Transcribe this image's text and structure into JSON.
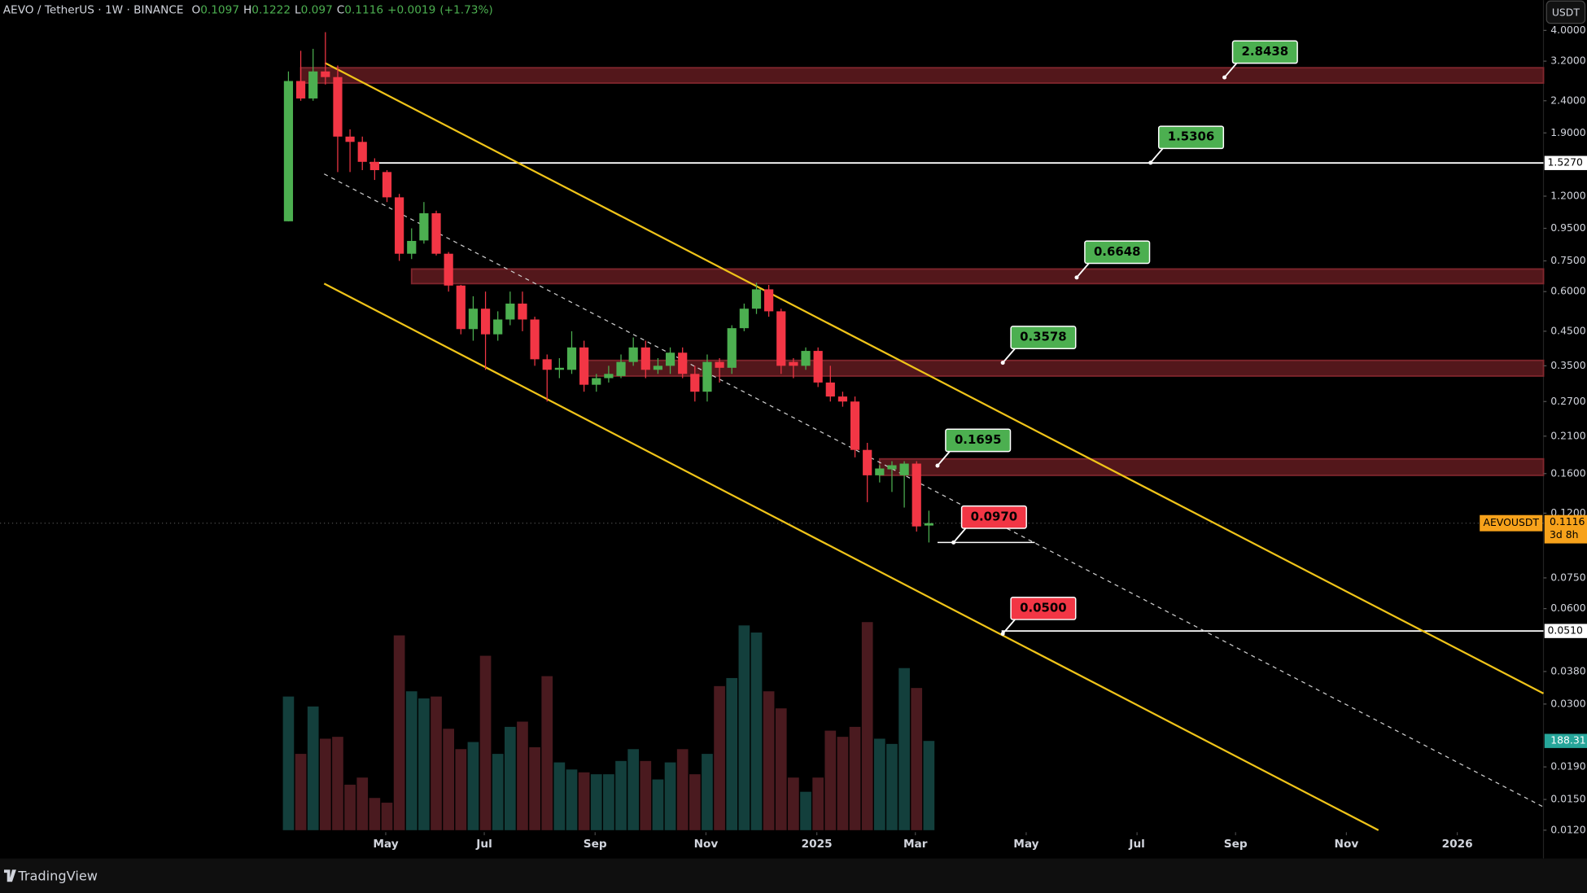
{
  "header": {
    "symbol": "AEVO / TetherUS · 1W · BINANCE",
    "ohlc": [
      {
        "label": "O",
        "value": 0.1097
      },
      {
        "label": "H",
        "value": 0.1222
      },
      {
        "label": "L",
        "value": 0.097
      },
      {
        "label": "C",
        "value": 0.1116
      }
    ],
    "change": {
      "value": 0.0019,
      "label": "+0.0019"
    },
    "change_pct": {
      "value": 1.73,
      "label": "(+1.73%)"
    }
  },
  "currency_button": "USDT",
  "footer": {
    "brand": "TradingView"
  },
  "chart_data": {
    "type": "candlestick",
    "log_scale": true,
    "xlim": [
      -23.42,
      101.9
    ],
    "xticks": [
      {
        "value": 7.9,
        "label": "May"
      },
      {
        "value": 15.9,
        "label": "Jul"
      },
      {
        "value": 24.9,
        "label": "Sep"
      },
      {
        "value": 33.9,
        "label": "Nov"
      },
      {
        "value": 42.9,
        "label": "2025"
      },
      {
        "value": 50.9,
        "label": "Mar"
      },
      {
        "value": 59.9,
        "label": "May"
      },
      {
        "value": 68.9,
        "label": "Jul"
      },
      {
        "value": 76.9,
        "label": "Sep"
      },
      {
        "value": 85.9,
        "label": "Nov"
      },
      {
        "value": 94.9,
        "label": "2026"
      }
    ],
    "ylim": [
      0.012,
      4.0
    ],
    "yticks": [
      {
        "value": 4,
        "label": "4.0000"
      },
      {
        "value": 3.2,
        "label": "3.2000"
      },
      {
        "value": 2.4,
        "label": "2.4000"
      },
      {
        "value": 1.9,
        "label": "1.9000"
      },
      {
        "value": 1.2,
        "label": "1.2000"
      },
      {
        "value": 0.95,
        "label": "0.9500"
      },
      {
        "value": 0.75,
        "label": "0.7500"
      },
      {
        "value": 0.6,
        "label": "0.6000"
      },
      {
        "value": 0.45,
        "label": "0.4500"
      },
      {
        "value": 0.35,
        "label": "0.3500"
      },
      {
        "value": 0.27,
        "label": "0.2700"
      },
      {
        "value": 0.21,
        "label": "0.2100"
      },
      {
        "value": 0.16,
        "label": "0.1600"
      },
      {
        "value": 0.12,
        "label": "0.1200"
      },
      {
        "value": 0.075,
        "label": "0.0750"
      },
      {
        "value": 0.06,
        "label": "0.0600"
      },
      {
        "value": 0.038,
        "label": "0.0380"
      },
      {
        "value": 0.03,
        "label": "0.0300"
      },
      {
        "value": 0.019,
        "label": "0.0190"
      },
      {
        "value": 0.015,
        "label": "0.0150"
      },
      {
        "value": 0.012,
        "label": "0.0120"
      }
    ],
    "series": [
      {
        "name": "AEVOUSDT",
        "up_color": "#4caf50",
        "down_color": "#f23645",
        "open": [
          1.0,
          2.77,
          2.44,
          2.97,
          2.85,
          1.85,
          1.78,
          1.54,
          1.43,
          1.19,
          0.79,
          0.87,
          1.06,
          0.79,
          0.627,
          0.457,
          0.53,
          0.44,
          0.49,
          0.55,
          0.49,
          0.367,
          0.34,
          0.34,
          0.4,
          0.305,
          0.32,
          0.325,
          0.36,
          0.4,
          0.34,
          0.35,
          0.385,
          0.33,
          0.29,
          0.36,
          0.345,
          0.46,
          0.53,
          0.61,
          0.52,
          0.36,
          0.35,
          0.39,
          0.31,
          0.28,
          0.27,
          0.19,
          0.158,
          0.165,
          0.158,
          0.172,
          0.1097
        ],
        "high": [
          2.97,
          3.45,
          3.5,
          3.95,
          3.1,
          1.95,
          1.85,
          1.58,
          1.45,
          1.22,
          0.95,
          1.15,
          1.08,
          0.8,
          0.63,
          0.58,
          0.6,
          0.52,
          0.6,
          0.6,
          0.5,
          0.38,
          0.37,
          0.45,
          0.42,
          0.33,
          0.35,
          0.38,
          0.43,
          0.42,
          0.37,
          0.4,
          0.4,
          0.35,
          0.38,
          0.37,
          0.47,
          0.55,
          0.64,
          0.63,
          0.53,
          0.37,
          0.4,
          0.4,
          0.35,
          0.29,
          0.28,
          0.2,
          0.17,
          0.175,
          0.175,
          0.175,
          0.1222
        ],
        "low": [
          1.0,
          2.4,
          2.4,
          2.7,
          1.43,
          1.43,
          1.45,
          1.35,
          1.15,
          0.75,
          0.76,
          0.85,
          0.78,
          0.6,
          0.44,
          0.42,
          0.34,
          0.42,
          0.47,
          0.45,
          0.35,
          0.27,
          0.32,
          0.33,
          0.29,
          0.29,
          0.31,
          0.32,
          0.35,
          0.32,
          0.33,
          0.33,
          0.32,
          0.27,
          0.27,
          0.31,
          0.33,
          0.45,
          0.51,
          0.5,
          0.33,
          0.32,
          0.34,
          0.3,
          0.27,
          0.26,
          0.18,
          0.13,
          0.15,
          0.14,
          0.125,
          0.105,
          0.097
        ],
        "close": [
          2.77,
          2.44,
          2.97,
          2.85,
          1.85,
          1.78,
          1.54,
          1.45,
          1.19,
          0.79,
          0.867,
          1.06,
          0.79,
          0.627,
          0.457,
          0.53,
          0.44,
          0.49,
          0.55,
          0.49,
          0.367,
          0.34,
          0.345,
          0.4,
          0.305,
          0.32,
          0.33,
          0.36,
          0.4,
          0.34,
          0.35,
          0.385,
          0.33,
          0.29,
          0.36,
          0.345,
          0.46,
          0.53,
          0.61,
          0.52,
          0.35,
          0.35,
          0.39,
          0.31,
          0.28,
          0.27,
          0.19,
          0.158,
          0.166,
          0.17,
          0.172,
          0.109,
          0.1116
        ]
      }
    ],
    "volume": {
      "ylim": [
        0,
        440
      ],
      "up_color": "#133f3c",
      "down_color": "#4a1a1f",
      "label_color": "#26a69a",
      "values": [
        282,
        161,
        261,
        193,
        197,
        96,
        111,
        68,
        58,
        411,
        293,
        278,
        282,
        214,
        171,
        186,
        368,
        161,
        218,
        229,
        175,
        325,
        143,
        128,
        122,
        118,
        118,
        146,
        171,
        146,
        107,
        143,
        171,
        118,
        161,
        304,
        321,
        432,
        417,
        293,
        257,
        111,
        81,
        111,
        210,
        197,
        218,
        439,
        193,
        182,
        342,
        300,
        188.31
      ]
    },
    "zones": [
      {
        "low": 2.73,
        "high": 3.05,
        "start": 1
      },
      {
        "low": 0.636,
        "high": 0.707,
        "start": 10
      },
      {
        "low": 0.325,
        "high": 0.364,
        "start": 24.2
      },
      {
        "low": 0.158,
        "high": 0.178,
        "start": 48
      }
    ],
    "zone_color": "#5c1a1f",
    "levels": [
      {
        "value": 1.527,
        "label": "1.5270",
        "start": 6.6
      },
      {
        "value": 0.051,
        "label": "0.0510",
        "start": 57.9
      }
    ],
    "marker_lines": [
      {
        "value": 0.097,
        "start": 52.7,
        "end": 60.6
      }
    ],
    "channel": [
      {
        "x": [
          2.96,
          101.9
        ],
        "y": [
          3.16,
          0.0324
        ],
        "color": "#f0c419",
        "dashed": false
      },
      {
        "x": [
          2.9,
          88.5
        ],
        "y": [
          0.636,
          0.012
        ],
        "color": "#f0c419",
        "dashed": false
      },
      {
        "x": [
          2.9,
          101.9
        ],
        "y": [
          1.41,
          0.0142
        ],
        "color": "#cccccc",
        "dashed": true
      }
    ],
    "callouts": [
      {
        "x": 76,
        "value": 2.8438,
        "label": "2.8438",
        "color": "#4caf50"
      },
      {
        "x": 70,
        "value": 1.5306,
        "label": "1.5306",
        "color": "#4caf50"
      },
      {
        "x": 64,
        "value": 0.6648,
        "label": "0.6648",
        "color": "#4caf50"
      },
      {
        "x": 58,
        "value": 0.3578,
        "label": "0.3578",
        "color": "#4caf50"
      },
      {
        "x": 52.7,
        "value": 0.1695,
        "label": "0.1695",
        "color": "#4caf50"
      },
      {
        "x": 54,
        "value": 0.097,
        "label": "0.0970",
        "color": "#f23645"
      },
      {
        "x": 58,
        "value": 0.05,
        "label": "0.0500",
        "color": "#f23645"
      }
    ],
    "last_price": {
      "name": "AEVOUSDT",
      "value": 0.1116,
      "countdown": "3d 8h",
      "color": "#f7a21b"
    }
  }
}
